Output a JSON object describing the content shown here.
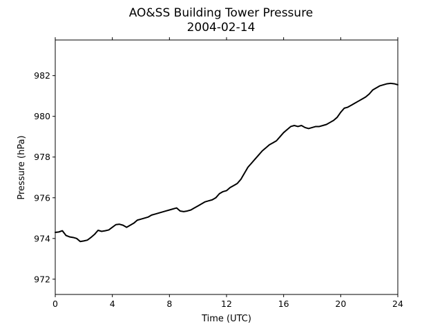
{
  "chart_data": {
    "type": "line",
    "title": "AO&SS Building Tower Pressure",
    "subtitle": "2004-02-14",
    "xlabel": "Time (UTC)",
    "ylabel": "Pressure (hPa)",
    "xlim": [
      0,
      24
    ],
    "ylim": [
      971.25,
      983.75
    ],
    "xticks": [
      0,
      4,
      8,
      12,
      16,
      20,
      24
    ],
    "yticks": [
      972,
      974,
      976,
      978,
      980,
      982
    ],
    "grid": false,
    "line_color": "#000000",
    "series": [
      {
        "name": "",
        "x": [
          0,
          0.25,
          0.5,
          0.75,
          1.0,
          1.25,
          1.5,
          1.75,
          2.0,
          2.25,
          2.5,
          2.75,
          3.0,
          3.25,
          3.5,
          3.75,
          4.0,
          4.25,
          4.5,
          4.75,
          5.0,
          5.25,
          5.5,
          5.75,
          6.0,
          6.25,
          6.5,
          6.75,
          7.0,
          7.25,
          7.5,
          7.75,
          8.0,
          8.25,
          8.5,
          8.75,
          9.0,
          9.25,
          9.5,
          9.75,
          10.0,
          10.25,
          10.5,
          10.75,
          11.0,
          11.25,
          11.5,
          11.75,
          12.0,
          12.25,
          12.5,
          12.75,
          13.0,
          13.25,
          13.5,
          13.75,
          14.0,
          14.25,
          14.5,
          14.75,
          15.0,
          15.25,
          15.5,
          15.75,
          16.0,
          16.25,
          16.5,
          16.75,
          17.0,
          17.25,
          17.5,
          17.75,
          18.0,
          18.25,
          18.5,
          18.75,
          19.0,
          19.25,
          19.5,
          19.75,
          20.0,
          20.25,
          20.5,
          20.75,
          21.0,
          21.25,
          21.5,
          21.75,
          22.0,
          22.25,
          22.5,
          22.75,
          23.0,
          23.25,
          23.5,
          23.75,
          24.0
        ],
        "y": [
          974.3,
          974.32,
          974.38,
          974.15,
          974.08,
          974.05,
          974.0,
          973.85,
          973.88,
          973.92,
          974.05,
          974.2,
          974.4,
          974.35,
          974.38,
          974.42,
          974.55,
          974.68,
          974.7,
          974.65,
          974.55,
          974.65,
          974.75,
          974.9,
          974.95,
          975.0,
          975.05,
          975.15,
          975.2,
          975.25,
          975.3,
          975.35,
          975.4,
          975.45,
          975.5,
          975.35,
          975.32,
          975.35,
          975.4,
          975.5,
          975.6,
          975.7,
          975.8,
          975.85,
          975.9,
          976.0,
          976.2,
          976.3,
          976.35,
          976.5,
          976.6,
          976.7,
          976.9,
          977.2,
          977.5,
          977.7,
          977.9,
          978.1,
          978.3,
          978.45,
          978.6,
          978.7,
          978.8,
          979.0,
          979.2,
          979.35,
          979.5,
          979.55,
          979.5,
          979.55,
          979.45,
          979.4,
          979.45,
          979.5,
          979.5,
          979.55,
          979.6,
          979.7,
          979.8,
          979.95,
          980.2,
          980.4,
          980.45,
          980.55,
          980.65,
          980.75,
          980.85,
          980.95,
          981.1,
          981.3,
          981.4,
          981.5,
          981.55,
          981.6,
          981.62,
          981.6,
          981.55
        ]
      }
    ]
  }
}
